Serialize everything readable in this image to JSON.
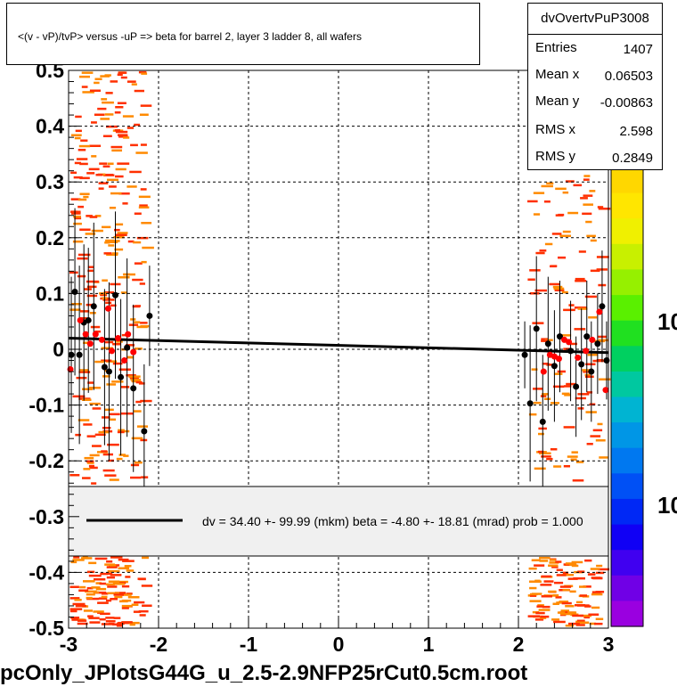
{
  "plot": {
    "title": "<(v - vP)/tvP> versus  -uP => beta for barrel 2, layer 3 ladder 8, all wafers",
    "footer": "pcOnly_JPlotsG44G_u_2.5-2.9NFP25rCut0.5cm.root"
  },
  "stats": {
    "name": "dvOvertvPuP3008",
    "rows": [
      {
        "label": "Entries",
        "value": "1407"
      },
      {
        "label": "Mean x",
        "value": "0.06503"
      },
      {
        "label": "Mean y",
        "value": "-0.00863"
      },
      {
        "label": "RMS x",
        "value": "2.598"
      },
      {
        "label": "RMS y",
        "value": "0.2849"
      }
    ]
  },
  "legend": {
    "text": "dv =   34.40 +- 99.99 (mkm) beta =   -4.80 +- 18.81 (mrad) prob = 1.000"
  },
  "colorbar": {
    "colors": [
      "#ffd700",
      "#ffe600",
      "#f0f000",
      "#c8f000",
      "#96f000",
      "#5af000",
      "#20e020",
      "#00d060",
      "#00c8a0",
      "#00b4d2",
      "#0096e6",
      "#0078f0",
      "#0050f5",
      "#0028f5",
      "#1000f5",
      "#4000f0",
      "#7000e6",
      "#9a00e0"
    ],
    "labels": [
      "10",
      "10"
    ]
  },
  "chart_data": {
    "type": "scatter",
    "title": "<(v - vP)/tvP> versus  -uP => beta for barrel 2, layer 3 ladder 8, all wafers",
    "xlabel": "",
    "ylabel": "",
    "xlim": [
      -3,
      3
    ],
    "ylim": [
      -0.5,
      0.5
    ],
    "x_ticks": [
      "-3",
      "-2",
      "-1",
      "0",
      "1",
      "2",
      "3"
    ],
    "y_ticks": [
      "-0.5",
      "-0.4",
      "-0.3",
      "-0.2",
      "-0.1",
      "0",
      "0.1",
      "0.2",
      "0.3",
      "0.4",
      "0.5"
    ],
    "grid": true,
    "fit_line": {
      "x": [
        -3,
        3
      ],
      "y": [
        0.02,
        -0.006
      ]
    },
    "series": [
      {
        "marker": "black",
        "color": "#000000",
        "points": [
          {
            "x": -2.97,
            "y": -0.01,
            "err": 0.14
          },
          {
            "x": -2.93,
            "y": 0.103,
            "err": 0.15
          },
          {
            "x": -2.88,
            "y": -0.01,
            "err": 0.16
          },
          {
            "x": -2.83,
            "y": 0.048,
            "err": 0.14
          },
          {
            "x": -2.78,
            "y": 0.052,
            "err": 0.13
          },
          {
            "x": -2.72,
            "y": 0.077,
            "err": 0.15
          },
          {
            "x": -2.6,
            "y": -0.032,
            "err": 0.14
          },
          {
            "x": -2.55,
            "y": -0.04,
            "err": 0.16
          },
          {
            "x": -2.48,
            "y": 0.097,
            "err": 0.15
          },
          {
            "x": -2.42,
            "y": -0.05,
            "err": 0.14
          },
          {
            "x": -2.35,
            "y": 0.003,
            "err": 0.16
          },
          {
            "x": -2.28,
            "y": -0.07,
            "err": 0.15
          },
          {
            "x": -2.16,
            "y": -0.147,
            "err": 0.12
          },
          {
            "x": -2.1,
            "y": 0.06,
            "err": 0.09
          },
          {
            "x": 2.07,
            "y": -0.01,
            "err": 0.06
          },
          {
            "x": 2.13,
            "y": -0.097,
            "err": 0.14
          },
          {
            "x": 2.2,
            "y": 0.037,
            "err": 0.13
          },
          {
            "x": 2.27,
            "y": -0.13,
            "err": 0.12
          },
          {
            "x": 2.33,
            "y": 0.01,
            "err": 0.12
          },
          {
            "x": 2.4,
            "y": -0.03,
            "err": 0.1
          },
          {
            "x": 2.46,
            "y": 0.023,
            "err": 0.1
          },
          {
            "x": 2.58,
            "y": -0.003,
            "err": 0.09
          },
          {
            "x": 2.64,
            "y": -0.067,
            "err": 0.09
          },
          {
            "x": 2.7,
            "y": -0.027,
            "err": 0.1
          },
          {
            "x": 2.76,
            "y": 0.023,
            "err": 0.1
          },
          {
            "x": 2.81,
            "y": -0.04,
            "err": 0.09
          },
          {
            "x": 2.88,
            "y": 0.01,
            "err": 0.09
          },
          {
            "x": 2.93,
            "y": 0.077,
            "err": 0.1
          },
          {
            "x": 2.98,
            "y": -0.02,
            "err": 0.07
          }
        ]
      },
      {
        "marker": "red",
        "color": "#ff0000",
        "points": [
          {
            "x": -2.98,
            "y": -0.036
          },
          {
            "x": -2.87,
            "y": 0.052
          },
          {
            "x": -2.81,
            "y": 0.027
          },
          {
            "x": -2.76,
            "y": 0.01
          },
          {
            "x": -2.7,
            "y": 0.027
          },
          {
            "x": -2.63,
            "y": 0.017
          },
          {
            "x": -2.56,
            "y": 0.073
          },
          {
            "x": -2.52,
            "y": -0.003
          },
          {
            "x": -2.45,
            "y": 0.02
          },
          {
            "x": -2.38,
            "y": -0.02
          },
          {
            "x": -2.34,
            "y": 0.027
          },
          {
            "x": -2.28,
            "y": -0.005
          },
          {
            "x": 2.28,
            "y": -0.04
          },
          {
            "x": 2.35,
            "y": -0.01
          },
          {
            "x": 2.4,
            "y": -0.013
          },
          {
            "x": 2.45,
            "y": -0.017
          },
          {
            "x": 2.51,
            "y": 0.017
          },
          {
            "x": 2.56,
            "y": 0.013
          },
          {
            "x": 2.66,
            "y": -0.015
          },
          {
            "x": 2.75,
            "y": -0.003
          },
          {
            "x": 2.82,
            "y": 0.017
          },
          {
            "x": 2.9,
            "y": 0.067
          },
          {
            "x": 2.97,
            "y": -0.073
          }
        ]
      }
    ]
  }
}
